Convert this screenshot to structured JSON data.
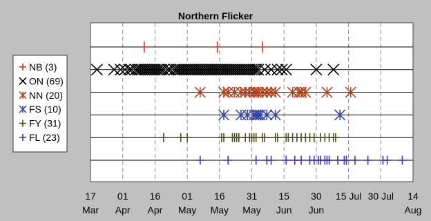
{
  "chart_data": {
    "type": "scatter",
    "title": "Northern Flicker",
    "xlabel": "",
    "ylabel": "",
    "x_axis": {
      "min": "Mar 17",
      "max": "Aug 14",
      "ticks": [
        {
          "top": "17",
          "bottom": "Mar",
          "x": "Mar 17"
        },
        {
          "top": "01",
          "bottom": "Apr",
          "x": "Apr 01"
        },
        {
          "top": "16",
          "bottom": "Apr",
          "x": "Apr 16"
        },
        {
          "top": "01",
          "bottom": "May",
          "x": "May 01"
        },
        {
          "top": "16",
          "bottom": "May",
          "x": "May 16"
        },
        {
          "top": "31",
          "bottom": "May",
          "x": "May 31"
        },
        {
          "top": "15",
          "bottom": "Jun",
          "x": "Jun 15"
        },
        {
          "top": "30",
          "bottom": "Jun",
          "x": "Jun 30"
        },
        {
          "top": "15 Jul",
          "bottom": "",
          "x": "Jul 15"
        },
        {
          "top": "30 Jul",
          "bottom": "",
          "x": "Jul 30"
        },
        {
          "top": "14",
          "bottom": "Aug",
          "x": "Aug 14"
        }
      ]
    },
    "grid": "vertical dashed",
    "legend": "left",
    "series": [
      {
        "name": "NB (3)",
        "color": "#c0392b",
        "marker": "plus",
        "x": [
          "Apr 11",
          "May 15",
          "Jun 05"
        ]
      },
      {
        "name": "ON (69)",
        "color": "#000000",
        "marker": "x",
        "x": [
          "Mar 20",
          "Mar 28",
          "Mar 31",
          "Apr 02",
          "Apr 04",
          "Apr 05",
          "Apr 07",
          "Apr 08",
          "Apr 09",
          "Apr 10",
          "Apr 11",
          "Apr 12",
          "Apr 13",
          "Apr 14",
          "Apr 15",
          "Apr 16",
          "Apr 17",
          "Apr 18",
          "Apr 19",
          "Apr 20",
          "Apr 22",
          "Apr 23",
          "Apr 25",
          "Apr 26",
          "Apr 27",
          "Apr 28",
          "Apr 29",
          "Apr 30",
          "May 01",
          "May 02",
          "May 03",
          "May 04",
          "May 05",
          "May 06",
          "May 07",
          "May 08",
          "May 09",
          "May 10",
          "May 11",
          "May 12",
          "May 13",
          "May 14",
          "May 15",
          "May 16",
          "May 17",
          "May 18",
          "May 19",
          "May 20",
          "May 21",
          "May 22",
          "May 23",
          "May 24",
          "May 25",
          "May 26",
          "May 27",
          "May 28",
          "May 29",
          "May 30",
          "May 31",
          "Jun 01",
          "Jun 02",
          "Jun 03",
          "Jun 06",
          "Jun 09",
          "Jun 12",
          "Jun 14",
          "Jun 16",
          "Jun 30",
          "Jul 08"
        ]
      },
      {
        "name": "NN (20)",
        "color": "#b5401a",
        "marker": "asterisk",
        "x": [
          "May 07",
          "May 18",
          "May 20",
          "May 23",
          "May 26",
          "May 28",
          "May 30",
          "Jun 01",
          "Jun 02",
          "Jun 03",
          "Jun 05",
          "Jun 07",
          "Jun 09",
          "Jun 11",
          "Jun 19",
          "Jun 22",
          "Jun 23",
          "Jun 25",
          "Jul 05",
          "Jul 16"
        ]
      },
      {
        "name": "FS (10)",
        "color": "#3344aa",
        "marker": "asterisk",
        "x": [
          "May 18",
          "May 26",
          "May 29",
          "Jun 01",
          "Jun 02",
          "Jun 03",
          "Jun 04",
          "Jun 07",
          "Jun 11",
          "Jul 11"
        ]
      },
      {
        "name": "FY (31)",
        "color": "#4d4d1a",
        "marker": "plus",
        "x": [
          "Apr 20",
          "Apr 28",
          "May 01",
          "May 17",
          "May 18",
          "May 22",
          "May 23",
          "May 24",
          "May 25",
          "May 28",
          "May 30",
          "May 31",
          "Jun 01",
          "Jun 02",
          "Jun 05",
          "Jun 06",
          "Jun 11",
          "Jun 12",
          "Jun 16",
          "Jun 17",
          "Jun 19",
          "Jun 21",
          "Jun 23",
          "Jun 25",
          "Jun 27",
          "Jun 29",
          "Jul 02",
          "Jul 04",
          "Jul 06",
          "Jul 08",
          "Jul 09"
        ]
      },
      {
        "name": "FL (23)",
        "color": "#4433aa",
        "marker": "plus",
        "x": [
          "May 07",
          "May 20",
          "Jun 02",
          "Jun 07",
          "Jun 09",
          "Jun 16",
          "Jun 20",
          "Jun 23",
          "Jun 27",
          "Jun 29",
          "Jul 01",
          "Jul 02",
          "Jul 04",
          "Jul 05",
          "Jul 06",
          "Jul 10",
          "Jul 13",
          "Jul 14",
          "Jul 18",
          "Jul 24",
          "Jul 31",
          "Aug 02",
          "Aug 09"
        ]
      }
    ]
  }
}
